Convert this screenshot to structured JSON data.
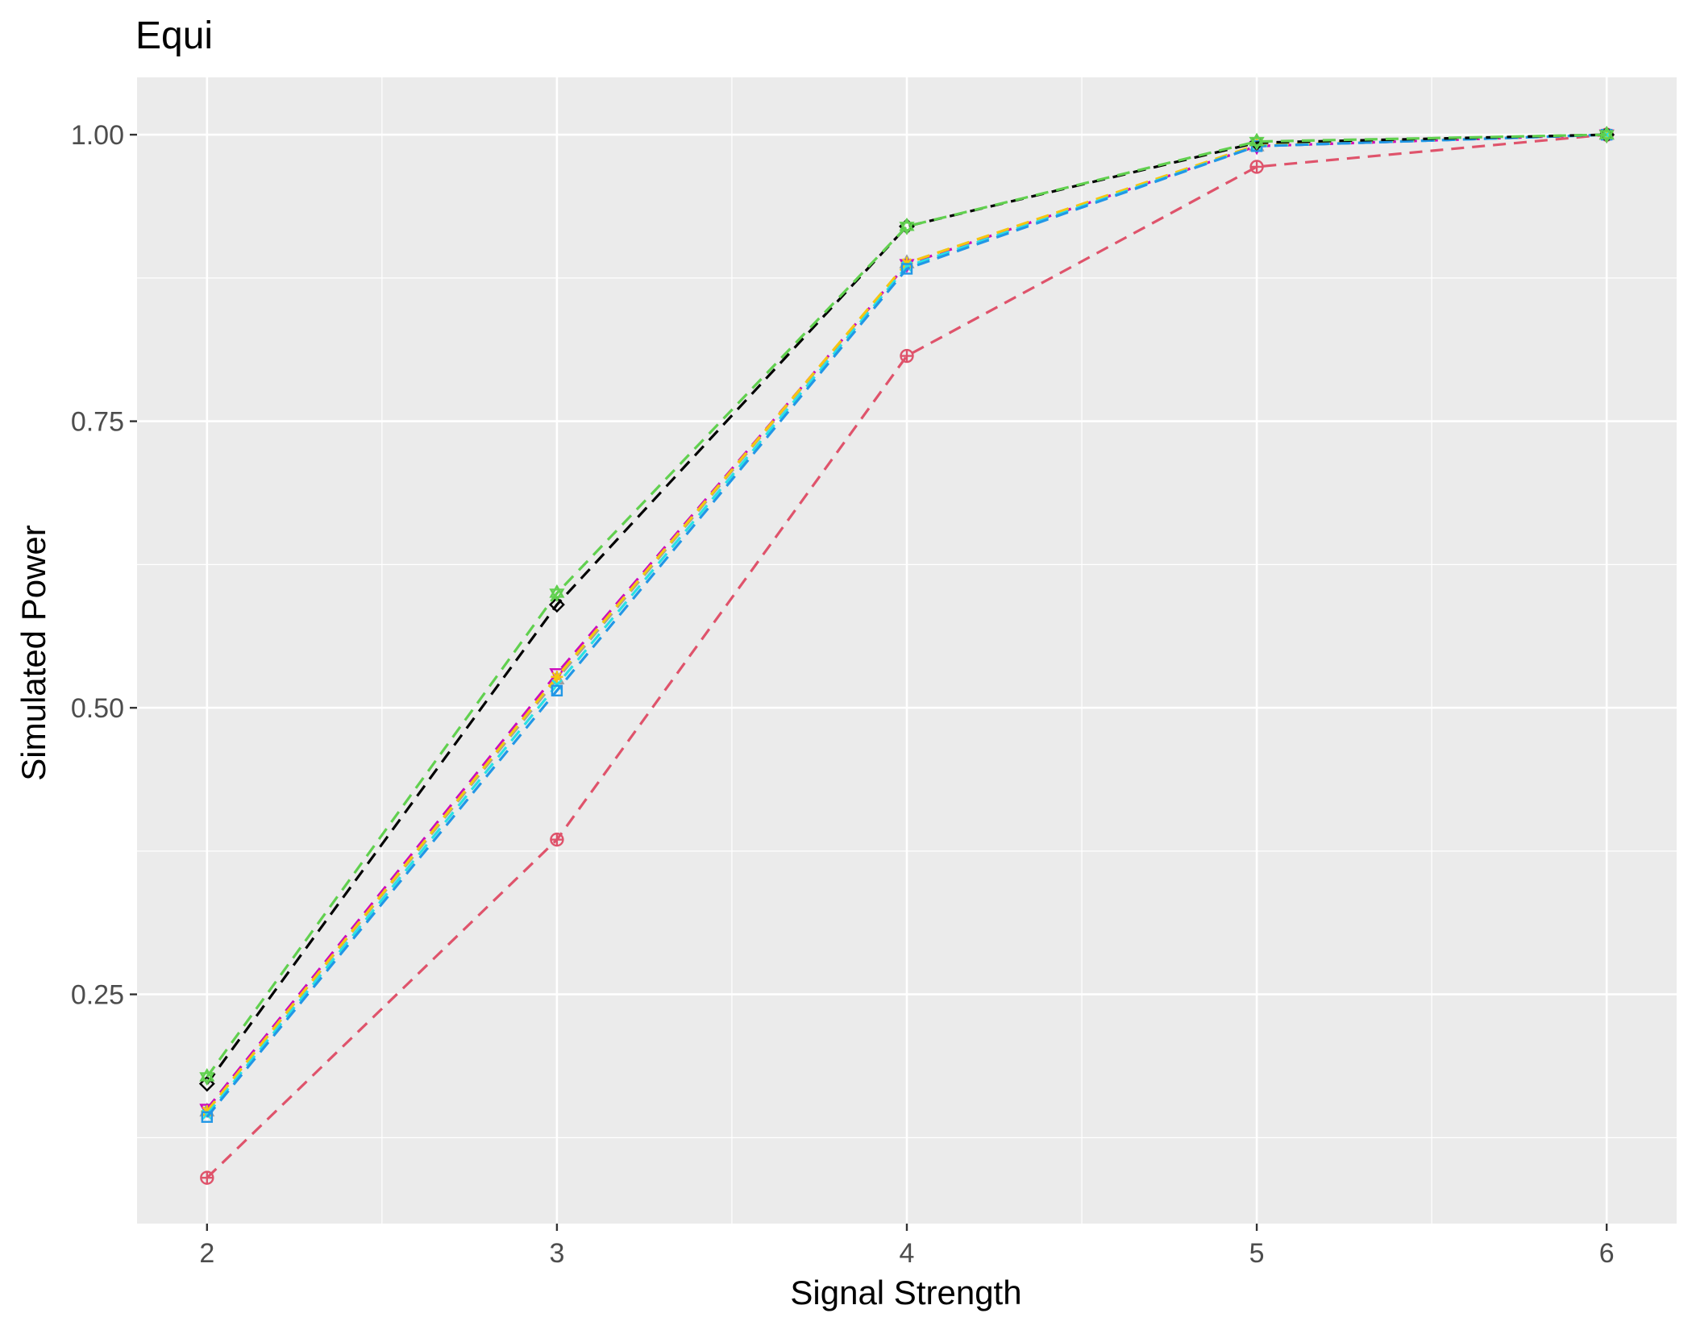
{
  "chart_data": {
    "type": "line",
    "title": "Equi",
    "xlabel": "Signal Strength",
    "ylabel": "Simulated Power",
    "x": [
      2,
      3,
      4,
      5,
      6
    ],
    "xlim": [
      1.8,
      6.2
    ],
    "ylim": [
      0.05,
      1.05
    ],
    "x_ticks": [
      2,
      3,
      4,
      5,
      6
    ],
    "x_tick_labels": [
      "2",
      "3",
      "4",
      "5",
      "6"
    ],
    "y_ticks": [
      0.25,
      0.5,
      0.75,
      1.0
    ],
    "y_tick_labels": [
      "0.25",
      "0.50",
      "0.75",
      "1.00"
    ],
    "grid": true,
    "legend": "none",
    "series": [
      {
        "color": "#df536b",
        "marker": "circle-plus",
        "values": [
          0.09,
          0.385,
          0.807,
          0.972,
          1.0
        ]
      },
      {
        "color": "#9e9e9e",
        "marker": "triangle",
        "values": [
          0.148,
          0.525,
          0.888,
          0.99,
          1.0
        ]
      },
      {
        "color": "#cd0bbc",
        "marker": "triangle-down",
        "values": [
          0.15,
          0.53,
          0.887,
          0.99,
          1.0
        ]
      },
      {
        "color": "#f5c710",
        "marker": "star",
        "values": [
          0.148,
          0.527,
          0.888,
          0.991,
          1.0
        ]
      },
      {
        "color": "#28e2e5",
        "marker": "x",
        "values": [
          0.145,
          0.52,
          0.885,
          0.99,
          1.0
        ]
      },
      {
        "color": "#2297e6",
        "marker": "square",
        "values": [
          0.143,
          0.515,
          0.883,
          0.99,
          1.0
        ]
      },
      {
        "color": "#000000",
        "marker": "diamond",
        "values": [
          0.172,
          0.59,
          0.92,
          0.993,
          1.0
        ]
      },
      {
        "color": "#61d04f",
        "marker": "star-of-david",
        "values": [
          0.178,
          0.6,
          0.92,
          0.994,
          1.0
        ]
      }
    ]
  }
}
